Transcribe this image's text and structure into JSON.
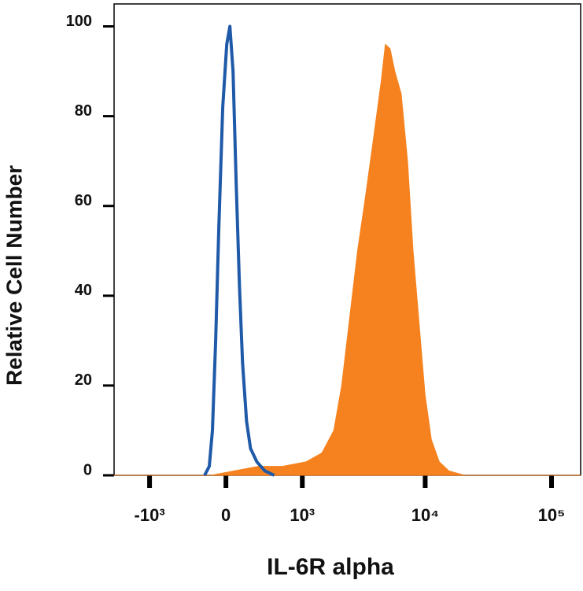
{
  "chart_data": {
    "type": "histogram-overlay",
    "xlabel": "IL-6R alpha",
    "ylabel": "Relative Cell Number",
    "xscale": "biexponential",
    "xlim": [
      -2000,
      170000
    ],
    "xticks": [
      {
        "value": -1000,
        "label": "-10³"
      },
      0,
      {
        "value": 1000,
        "label": "10³"
      },
      {
        "value": 10000,
        "label": "10⁴"
      },
      {
        "value": 100000,
        "label": "10⁵"
      }
    ],
    "ylim": [
      0,
      105
    ],
    "yticks": [
      0,
      20,
      40,
      60,
      80,
      100
    ],
    "series": [
      {
        "color": "#f5821f",
        "fill": true,
        "x": [
          -2000,
          -147,
          85,
          333,
          647,
          1079,
          1478,
          1857,
          2153,
          2498,
          2893,
          3350,
          3879,
          4485,
          4826,
          5262,
          5740,
          6450,
          7240,
          8013,
          8872,
          9959,
          11183,
          12921,
          15370,
          20510,
          170000
        ],
        "values": [
          0,
          0,
          1,
          2,
          2,
          3,
          5,
          10,
          20,
          35,
          50,
          62,
          75,
          88,
          96,
          95,
          90,
          85,
          70,
          50,
          35,
          18,
          8,
          3,
          1,
          0,
          0
        ]
      },
      {
        "color": "#1f5aa8",
        "fill": false,
        "x": [
          -212,
          -163,
          -132,
          -100,
          -69,
          -31,
          8,
          38,
          69,
          100,
          132,
          163,
          204,
          245,
          315,
          408,
          530
        ],
        "values": [
          0,
          2,
          10,
          30,
          55,
          82,
          96,
          100,
          90,
          65,
          42,
          25,
          12,
          6,
          3,
          1,
          0
        ]
      }
    ]
  }
}
